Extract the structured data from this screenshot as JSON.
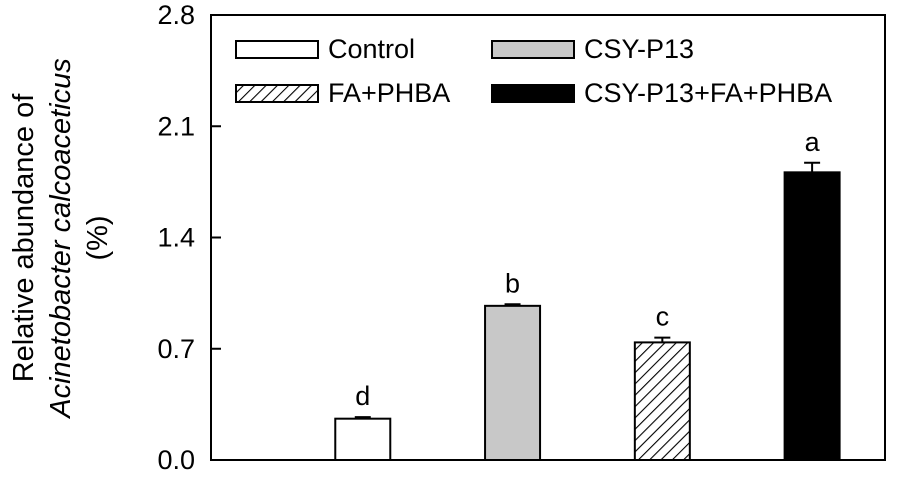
{
  "chart_data": {
    "type": "bar",
    "categories": [
      "Control",
      "CSY-P13",
      "FA+PHBA",
      "CSY-P13+FA+PHBA"
    ],
    "values": [
      0.26,
      0.97,
      0.74,
      1.81
    ],
    "errors": [
      0.01,
      0.01,
      0.03,
      0.06
    ],
    "significance_letters": [
      "d",
      "b",
      "c",
      "a"
    ],
    "ylabel_lines": [
      "Relative abundance of",
      "Acinetobacter calcoaceticus",
      "(%)"
    ],
    "xlabel": "",
    "title": "",
    "ylim": [
      0,
      2.8
    ],
    "yticks": [
      "0.0",
      "0.7",
      "1.4",
      "2.1",
      "2.8"
    ],
    "grid": false,
    "legend": {
      "placement": "top",
      "entries": [
        "Control",
        "CSY-P13",
        "FA+PHBA",
        "CSY-P13+FA+PHBA"
      ]
    },
    "series_styles": [
      {
        "fill": "#ffffff",
        "pattern": "none"
      },
      {
        "fill": "#c8c8c8",
        "pattern": "none"
      },
      {
        "fill": "#ffffff",
        "pattern": "diagonal-hatch"
      },
      {
        "fill": "#000000",
        "pattern": "none"
      }
    ]
  }
}
